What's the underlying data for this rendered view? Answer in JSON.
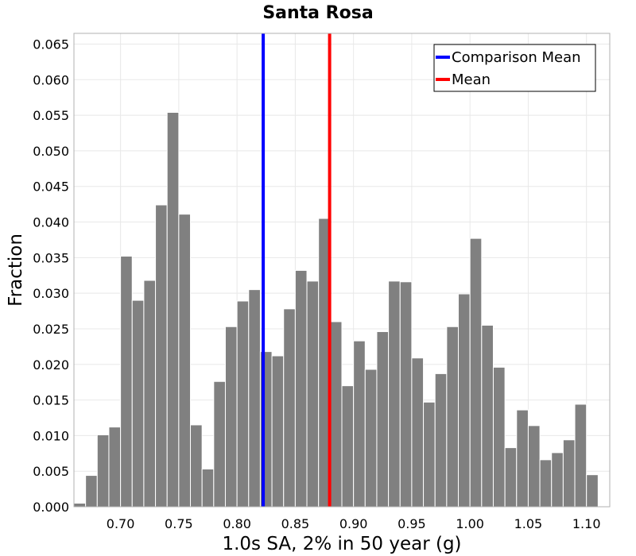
{
  "chart_data": {
    "type": "bar",
    "title": "Santa Rosa",
    "xlabel": "1.0s SA, 2% in 50 year (g)",
    "ylabel": "Fraction",
    "xlim": [
      0.66,
      1.12
    ],
    "ylim": [
      0.0,
      0.0665
    ],
    "grid": true,
    "bin_width": 0.01,
    "bin_starts": [
      0.66,
      0.67,
      0.68,
      0.69,
      0.7,
      0.71,
      0.72,
      0.73,
      0.74,
      0.75,
      0.76,
      0.77,
      0.78,
      0.79,
      0.8,
      0.81,
      0.82,
      0.83,
      0.84,
      0.85,
      0.86,
      0.87,
      0.88,
      0.89,
      0.9,
      0.91,
      0.92,
      0.93,
      0.94,
      0.95,
      0.96,
      0.97,
      0.98,
      0.99,
      1.0,
      1.01,
      1.02,
      1.03,
      1.04,
      1.05,
      1.06,
      1.07,
      1.08,
      1.09,
      1.1
    ],
    "values": [
      0.0005,
      0.0044,
      0.0101,
      0.0112,
      0.0352,
      0.029,
      0.0318,
      0.0424,
      0.0554,
      0.0411,
      0.0115,
      0.0053,
      0.0176,
      0.0253,
      0.0289,
      0.0305,
      0.0218,
      0.0212,
      0.0278,
      0.0332,
      0.0317,
      0.0405,
      0.026,
      0.017,
      0.0233,
      0.0193,
      0.0246,
      0.0317,
      0.0316,
      0.0209,
      0.0147,
      0.0187,
      0.0253,
      0.0299,
      0.0377,
      0.0255,
      0.0196,
      0.0083,
      0.0136,
      0.0114,
      0.0066,
      0.0076,
      0.0094,
      0.0144,
      0.0045
    ],
    "vertical_lines": [
      {
        "name": "Comparison Mean",
        "x": 0.8225,
        "color": "#0000ff"
      },
      {
        "name": "Mean",
        "x": 0.8795,
        "color": "#ff0000"
      }
    ],
    "xticks": [
      0.7,
      0.75,
      0.8,
      0.85,
      0.9,
      0.95,
      1.0,
      1.05,
      1.1
    ],
    "xtick_labels": [
      "0.70",
      "0.75",
      "0.80",
      "0.85",
      "0.90",
      "0.95",
      "1.00",
      "1.05",
      "1.10"
    ],
    "yticks": [
      0.0,
      0.005,
      0.01,
      0.015,
      0.02,
      0.025,
      0.03,
      0.035,
      0.04,
      0.045,
      0.05,
      0.055,
      0.06,
      0.065
    ],
    "ytick_labels": [
      "0.000",
      "0.005",
      "0.010",
      "0.015",
      "0.020",
      "0.025",
      "0.030",
      "0.035",
      "0.040",
      "0.045",
      "0.050",
      "0.055",
      "0.060",
      "0.065"
    ],
    "legend": {
      "placement": "top-right",
      "entries": [
        {
          "label": "Comparison Mean",
          "color": "#0000ff"
        },
        {
          "label": "Mean",
          "color": "#ff0000"
        }
      ]
    },
    "bar_color": "#808080"
  }
}
